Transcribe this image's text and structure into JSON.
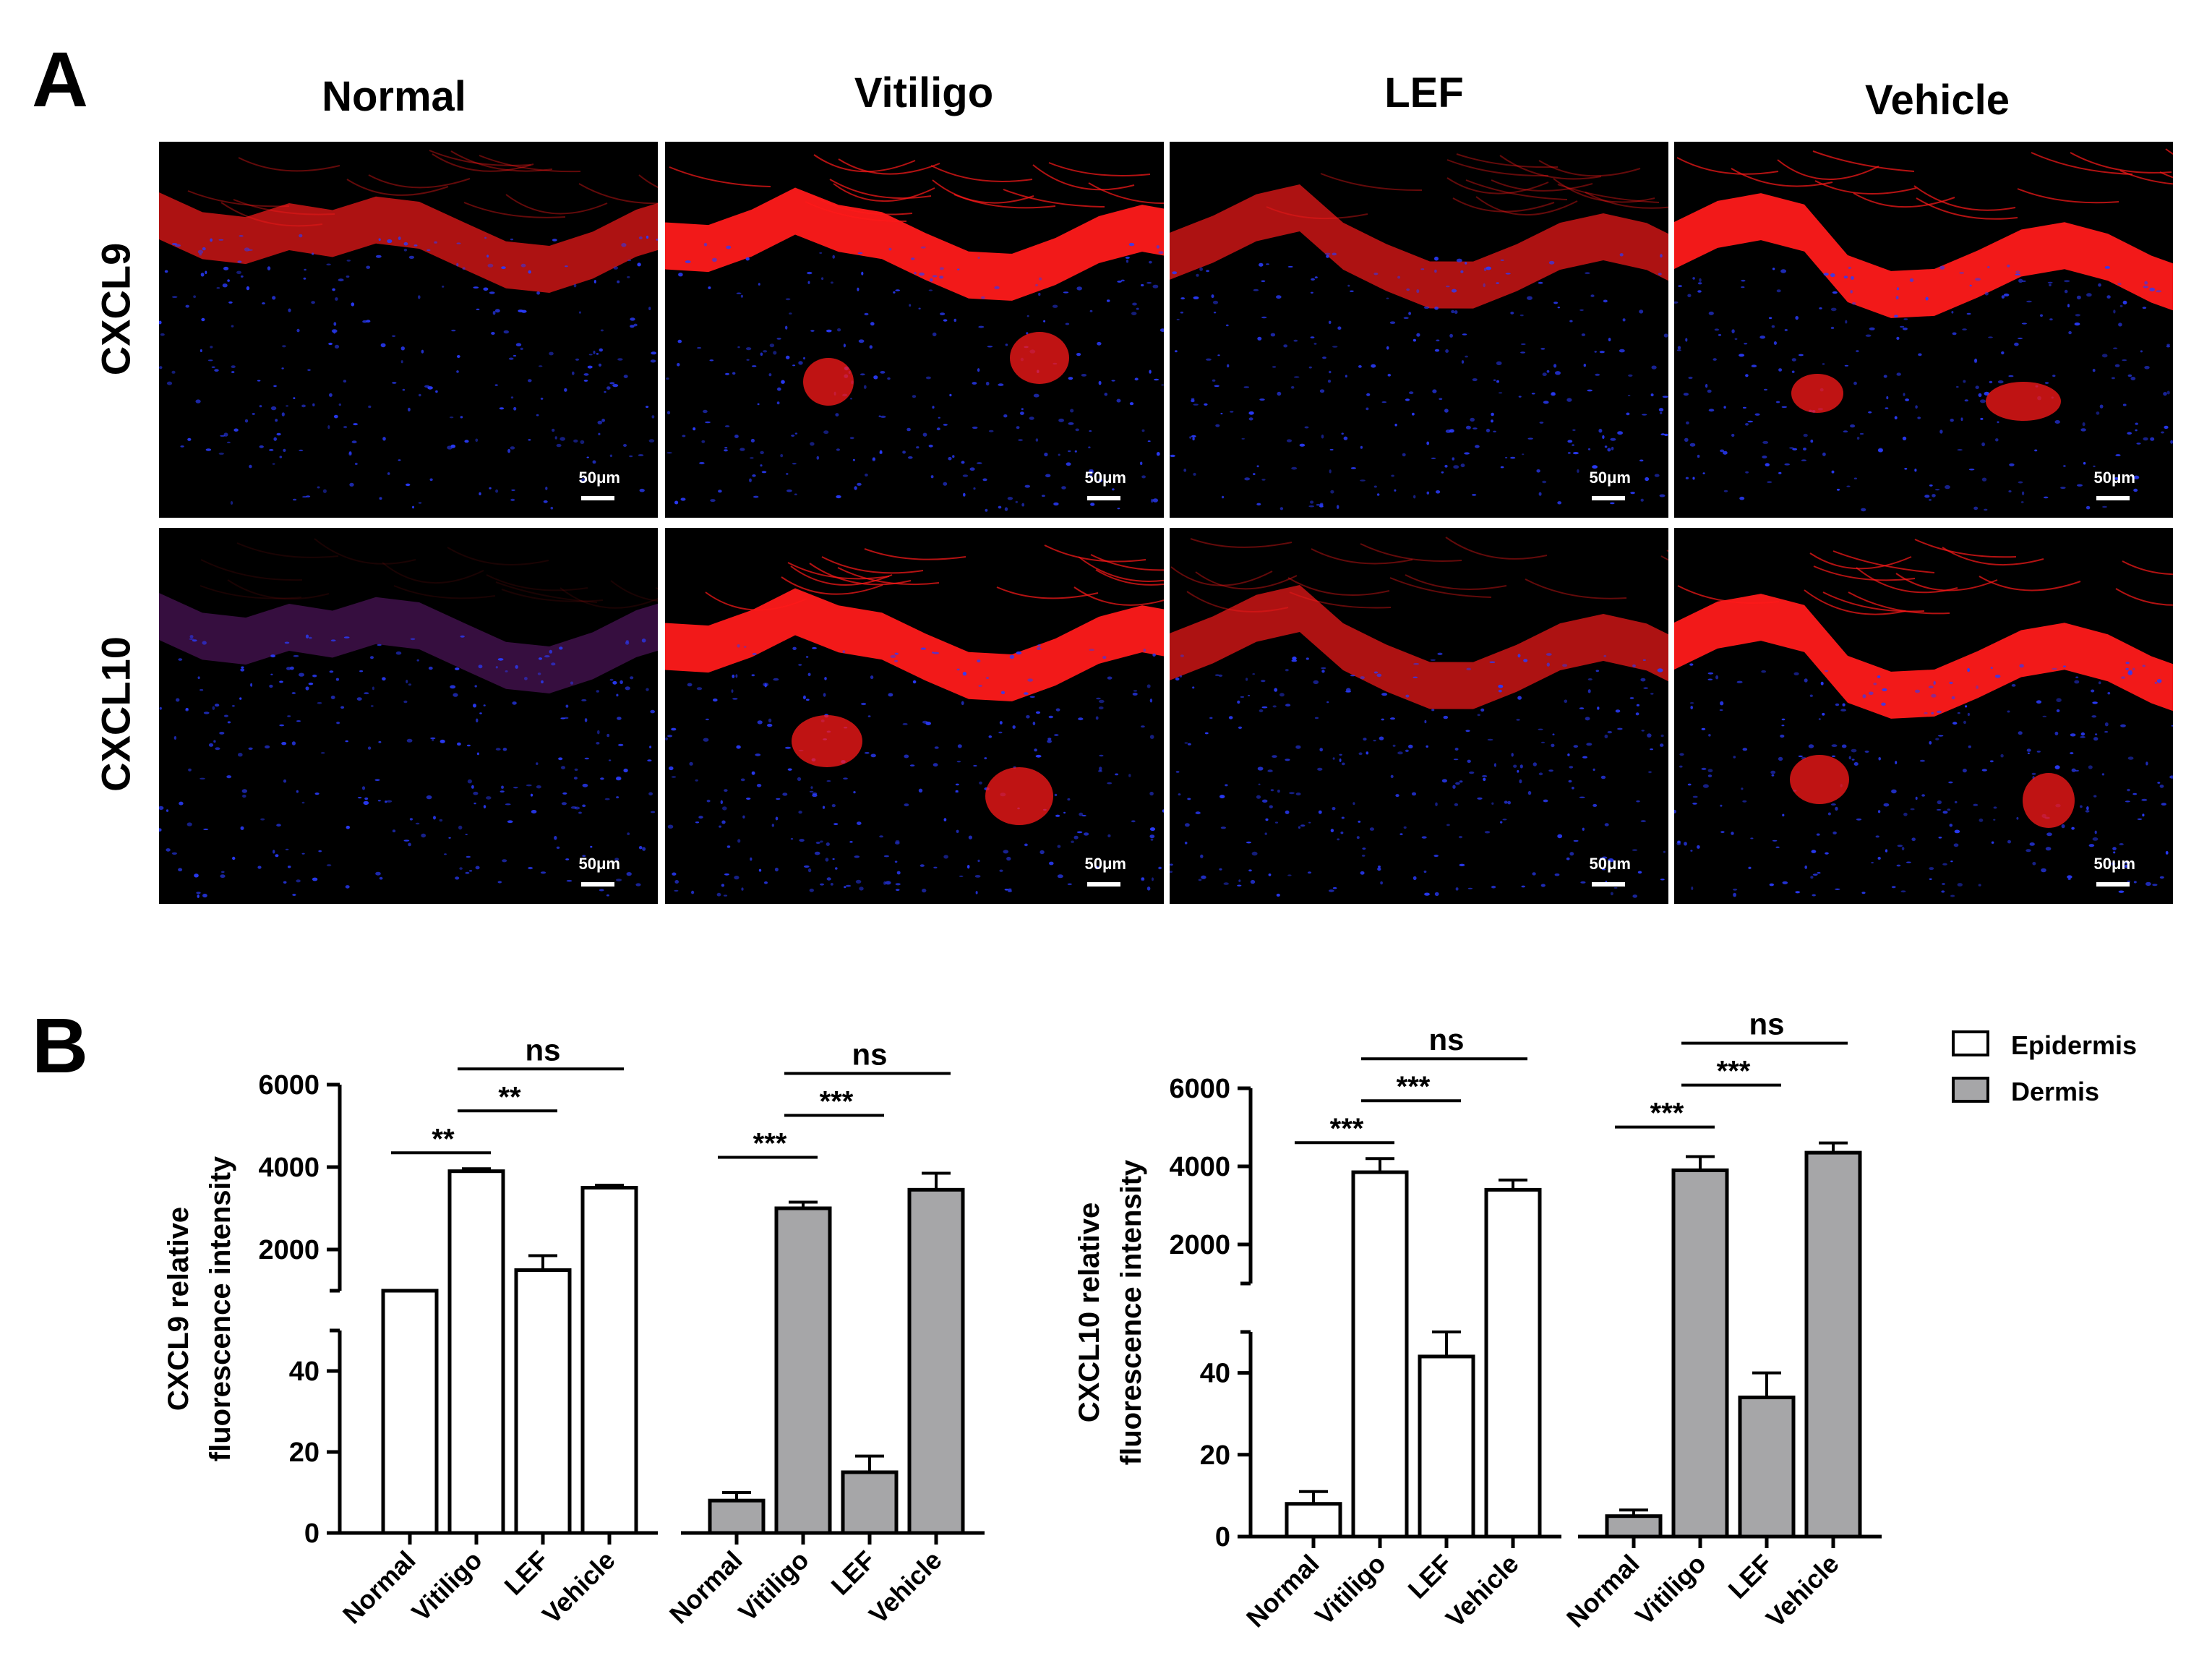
{
  "panel_a": {
    "letter": "A",
    "columns": [
      "Normal",
      "Vitiligo",
      "LEF",
      "Vehicle"
    ],
    "rows": [
      "CXCL9",
      "CXCL10"
    ],
    "scale_bar": "50μm"
  },
  "panel_b": {
    "letter": "B"
  },
  "legend": {
    "epidermis": "Epidermis",
    "dermis": "Dermis"
  },
  "colors": {
    "epidermis_fill": "#ffffff",
    "dermis_fill": "#a6a6a8",
    "stroke": "#000000",
    "tissue_red": "#ff1a1a",
    "nuclei_blue": "#2a3cff"
  },
  "chart_data": [
    {
      "type": "bar",
      "ylabel": [
        "CXCL9 relative",
        "fluorescence intensity"
      ],
      "categories": [
        "Normal",
        "Vitiligo",
        "LEF",
        "Vehicle"
      ],
      "axis_break": true,
      "ylim_lower": [
        0,
        50
      ],
      "yticks_lower": [
        0,
        20,
        40
      ],
      "ylim_upper": [
        0,
        6000
      ],
      "yticks_upper": [
        2000,
        4000,
        6000
      ],
      "series": [
        {
          "name": "Epidermis",
          "values": [
            800,
            3900,
            1500,
            3500
          ],
          "errors": [
            60,
            60,
            350,
            60
          ]
        },
        {
          "name": "Dermis",
          "values": [
            8,
            3000,
            15,
            3450
          ],
          "errors": [
            2,
            150,
            4,
            400
          ]
        }
      ],
      "significance": [
        {
          "series": "Epidermis",
          "from": "Normal",
          "to": "Vitiligo",
          "label": "**"
        },
        {
          "series": "Epidermis",
          "from": "Vitiligo",
          "to": "LEF",
          "label": "**"
        },
        {
          "series": "Epidermis",
          "from": "Vitiligo",
          "to": "Vehicle",
          "label": "ns"
        },
        {
          "series": "Dermis",
          "from": "Normal",
          "to": "Vitiligo",
          "label": "***"
        },
        {
          "series": "Dermis",
          "from": "Vitiligo",
          "to": "LEF",
          "label": "***"
        },
        {
          "series": "Dermis",
          "from": "Vitiligo",
          "to": "Vehicle",
          "label": "ns"
        }
      ]
    },
    {
      "type": "bar",
      "ylabel": [
        "CXCL10 relative",
        "fluorescence intensity"
      ],
      "categories": [
        "Normal",
        "Vitiligo",
        "LEF",
        "Vehicle"
      ],
      "axis_break": true,
      "ylim_lower": [
        0,
        50
      ],
      "yticks_lower": [
        0,
        20,
        40
      ],
      "ylim_upper": [
        0,
        6000
      ],
      "yticks_upper": [
        2000,
        4000,
        6000
      ],
      "series": [
        {
          "name": "Epidermis",
          "values": [
            8,
            3850,
            44,
            3400
          ],
          "errors": [
            3,
            350,
            6,
            250
          ]
        },
        {
          "name": "Dermis",
          "values": [
            5,
            3900,
            34,
            4350
          ],
          "errors": [
            1.5,
            350,
            6,
            250
          ]
        }
      ],
      "significance": [
        {
          "series": "Epidermis",
          "from": "Normal",
          "to": "Vitiligo",
          "label": "***"
        },
        {
          "series": "Epidermis",
          "from": "Vitiligo",
          "to": "LEF",
          "label": "***"
        },
        {
          "series": "Epidermis",
          "from": "Vitiligo",
          "to": "Vehicle",
          "label": "ns"
        },
        {
          "series": "Dermis",
          "from": "Normal",
          "to": "Vitiligo",
          "label": "***"
        },
        {
          "series": "Dermis",
          "from": "Vitiligo",
          "to": "LEF",
          "label": "***"
        },
        {
          "series": "Dermis",
          "from": "Vitiligo",
          "to": "Vehicle",
          "label": "ns"
        }
      ]
    }
  ]
}
